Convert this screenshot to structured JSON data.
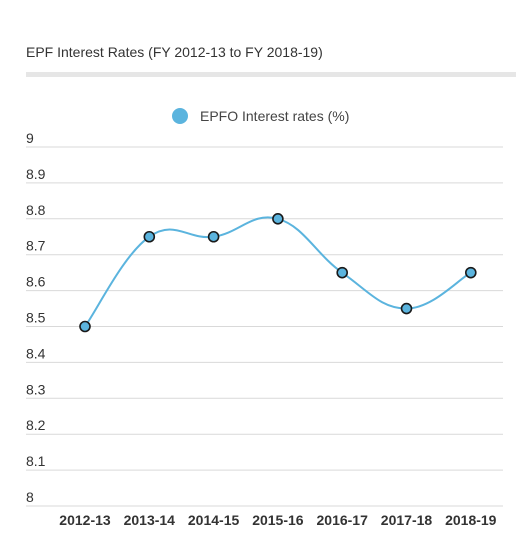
{
  "chart_data": {
    "type": "line",
    "title": "EPF Interest Rates (FY 2012-13 to FY 2018-19)",
    "categories": [
      "2012-13",
      "2013-14",
      "2014-15",
      "2015-16",
      "2016-17",
      "2017-18",
      "2018-19"
    ],
    "series": [
      {
        "name": "EPFO Interest rates (%)",
        "values": [
          8.5,
          8.75,
          8.75,
          8.8,
          8.65,
          8.55,
          8.65
        ]
      }
    ],
    "ylim": [
      8,
      9
    ],
    "yticks": [
      "9",
      "8.9",
      "8.8",
      "8.7",
      "8.6",
      "8.5",
      "8.4",
      "8.3",
      "8.2",
      "8.1",
      "8"
    ],
    "grid": true,
    "legend": "top-center",
    "colors": {
      "line": "#5bb4de",
      "marker_fill": "#5bb4de",
      "marker_stroke": "#1a1a1a",
      "grid": "#d9d9d9"
    }
  }
}
